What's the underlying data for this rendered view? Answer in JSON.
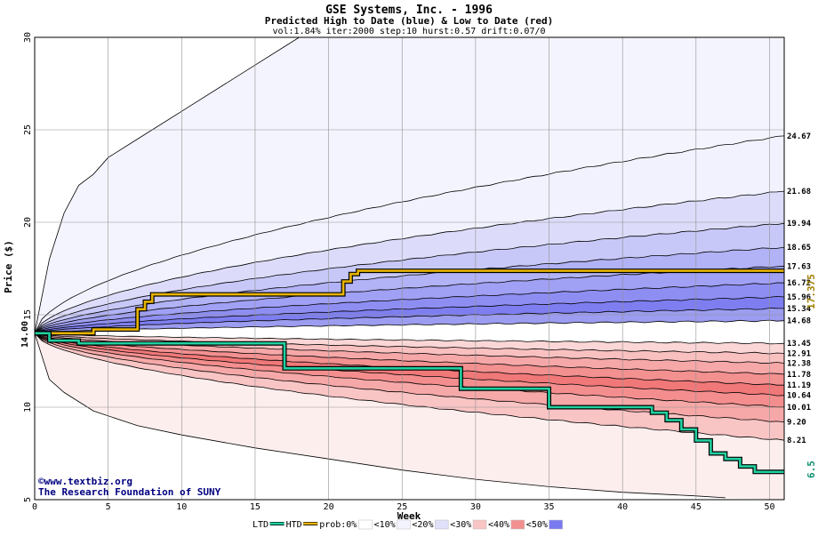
{
  "chart_data": {
    "type": "area",
    "title": "GSE Systems, Inc. - 1996",
    "subtitle": "Predicted High to Date (blue) &  Low to Date (red)",
    "params_line": "vol:1.84% iter:2000 step:10 hurst:0.57 drift:0.07/0",
    "xlabel": "Week",
    "ylabel": "Price ($)",
    "xlim": [
      0,
      51
    ],
    "ylim": [
      5,
      30
    ],
    "x_ticks": [
      0,
      5,
      10,
      15,
      20,
      25,
      30,
      35,
      40,
      45,
      50
    ],
    "y_ticks": [
      5,
      10,
      15,
      20,
      25,
      30
    ],
    "grid": true,
    "start_price": 14.0,
    "start_price_label": "14.00",
    "end_labels": {
      "upper": [
        "24.67",
        "21.68",
        "19.94",
        "18.65",
        "17.63",
        "16.72",
        "15.96",
        "15.34",
        "14.68"
      ],
      "lower": [
        "13.45",
        "12.91",
        "12.38",
        "11.78",
        "11.19",
        "10.64",
        "10.01",
        "9.20",
        "8.21"
      ]
    },
    "actual_high_label": "17.375",
    "actual_low_label": "6.5",
    "high_band_end_values": [
      24.67,
      21.68,
      19.94,
      18.65,
      17.63,
      16.72,
      15.96,
      15.34,
      14.68
    ],
    "low_band_end_values": [
      13.45,
      12.91,
      12.38,
      11.78,
      11.19,
      10.64,
      10.01,
      9.2,
      8.21
    ],
    "outer_upper_curve": [
      [
        0,
        14.0
      ],
      [
        1,
        18.0
      ],
      [
        2,
        20.5
      ],
      [
        3,
        22.0
      ],
      [
        4,
        22.6
      ],
      [
        5,
        23.5
      ],
      [
        7,
        24.5
      ],
      [
        10,
        26.0
      ],
      [
        15,
        28.5
      ],
      [
        17,
        29.5
      ],
      [
        18,
        30.0
      ]
    ],
    "outer_lower_curve": [
      [
        0,
        14.0
      ],
      [
        1,
        11.5
      ],
      [
        2,
        10.8
      ],
      [
        4,
        9.8
      ],
      [
        7,
        9.0
      ],
      [
        10,
        8.5
      ],
      [
        15,
        7.8
      ],
      [
        20,
        7.2
      ],
      [
        25,
        6.6
      ],
      [
        30,
        6.1
      ],
      [
        35,
        5.7
      ],
      [
        40,
        5.4
      ],
      [
        45,
        5.2
      ],
      [
        47,
        5.1
      ]
    ],
    "series": [
      {
        "name": "HTD",
        "color": "#e8b400",
        "points": [
          [
            0,
            14.0
          ],
          [
            1,
            14.0
          ],
          [
            4,
            14.0
          ],
          [
            4,
            14.2
          ],
          [
            7,
            14.2
          ],
          [
            7,
            15.3
          ],
          [
            7.5,
            15.3
          ],
          [
            7.5,
            15.7
          ],
          [
            8,
            15.7
          ],
          [
            8,
            16.1
          ],
          [
            21,
            16.1
          ],
          [
            21,
            16.8
          ],
          [
            21.5,
            16.8
          ],
          [
            21.5,
            17.2
          ],
          [
            22,
            17.2
          ],
          [
            22,
            17.375
          ],
          [
            51,
            17.375
          ]
        ]
      },
      {
        "name": "LTD",
        "color": "#20d0a0",
        "points": [
          [
            0,
            14.0
          ],
          [
            1,
            14.0
          ],
          [
            1,
            13.6
          ],
          [
            3,
            13.6
          ],
          [
            3,
            13.45
          ],
          [
            17,
            13.45
          ],
          [
            17,
            12.1
          ],
          [
            29,
            12.1
          ],
          [
            29,
            11.0
          ],
          [
            35,
            11.0
          ],
          [
            35,
            10.0
          ],
          [
            42,
            10.0
          ],
          [
            42,
            9.7
          ],
          [
            43,
            9.7
          ],
          [
            43,
            9.3
          ],
          [
            44,
            9.3
          ],
          [
            44,
            8.8
          ],
          [
            45,
            8.8
          ],
          [
            45,
            8.2
          ],
          [
            46,
            8.2
          ],
          [
            46,
            7.5
          ],
          [
            47,
            7.5
          ],
          [
            47,
            7.2
          ],
          [
            48,
            7.2
          ],
          [
            48,
            6.8
          ],
          [
            49,
            6.8
          ],
          [
            49,
            6.5
          ],
          [
            51,
            6.5
          ]
        ]
      }
    ],
    "legend": {
      "position": "bottom",
      "items": [
        {
          "label": "LTD",
          "color": "#20d0a0",
          "kind": "line"
        },
        {
          "label": "HTD",
          "color": "#e8b400",
          "kind": "line"
        },
        {
          "label": "prob:0%",
          "color": "#ffffff",
          "kind": "swatch"
        },
        {
          "label": "<10%",
          "color": "#f4f4ff",
          "kind": "swatch"
        },
        {
          "label": "<20%",
          "color": "#e0e0fa",
          "kind": "swatch"
        },
        {
          "label": "<30%",
          "color": "#f8c4c4",
          "kind": "swatch"
        },
        {
          "label": "<40%",
          "color": "#f29090",
          "kind": "swatch"
        },
        {
          "label": "<50%",
          "color": "#7a7af0",
          "kind": "swatch"
        }
      ]
    },
    "colors": {
      "upper_bands": [
        "#f2f2ff",
        "#dcdcfa",
        "#c8c8f8",
        "#b2b2f6",
        "#a0a0f4",
        "#8e8ef2",
        "#7e7ef0",
        "#9c9cf0",
        "#cacaf6"
      ],
      "lower_bands": [
        "#fbd6d6",
        "#f9c0c0",
        "#f6a8a8",
        "#f39090",
        "#f17878",
        "#f48e8e",
        "#f6a8a8",
        "#f9c4c4",
        "#fbdada"
      ],
      "outer_upper_fill": "#f4f4ff",
      "outer_lower_fill": "#fdeeee",
      "grid": "#909090"
    }
  },
  "footer": {
    "copyright": "©www.textbiz.org",
    "org": "The Research Foundation of SUNY"
  }
}
